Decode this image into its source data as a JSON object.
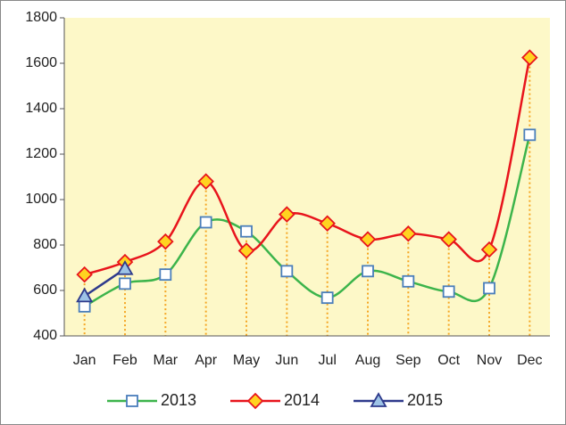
{
  "chart_data": {
    "type": "line",
    "smooth": true,
    "categories": [
      "Jan",
      "Feb",
      "Mar",
      "Apr",
      "May",
      "Jun",
      "Jul",
      "Aug",
      "Sep",
      "Oct",
      "Nov",
      "Dec"
    ],
    "series": [
      {
        "name": "2013",
        "color": "#3cb44b",
        "marker": "square",
        "marker_fill": "#ffffff",
        "marker_edge": "#4a7ebb",
        "values": [
          530,
          630,
          670,
          900,
          860,
          685,
          568,
          685,
          640,
          595,
          610,
          1285
        ]
      },
      {
        "name": "2014",
        "color": "#e8141c",
        "marker": "diamond",
        "marker_fill": "#ffd320",
        "marker_edge": "#e8141c",
        "values": [
          670,
          725,
          815,
          1080,
          775,
          935,
          895,
          825,
          850,
          825,
          780,
          1625
        ]
      },
      {
        "name": "2015",
        "color": "#2e3a8c",
        "marker": "triangle",
        "marker_fill": "#9dc3e6",
        "marker_edge": "#2e3a8c",
        "values": [
          575,
          695,
          null,
          null,
          null,
          null,
          null,
          null,
          null,
          null,
          null,
          null
        ]
      }
    ],
    "drop_line_color": "#f5a623",
    "ylim": [
      400,
      1800
    ],
    "yticks": [
      400,
      600,
      800,
      1000,
      1200,
      1400,
      1600,
      1800
    ],
    "plot_background": "#fdf8c8",
    "legend": "bottom"
  }
}
